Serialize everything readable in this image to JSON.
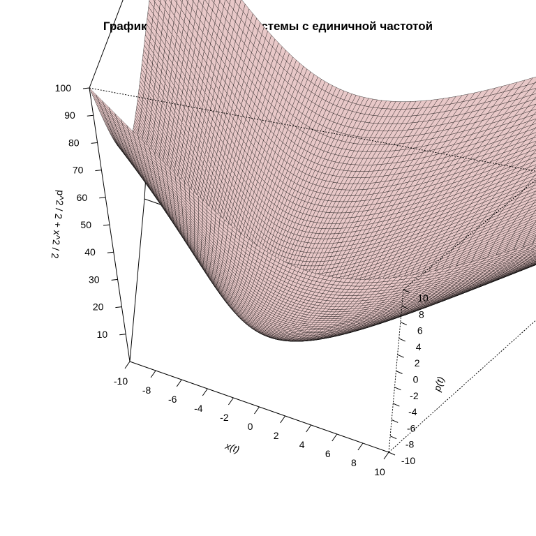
{
  "chart_data": {
    "type": "surface3d",
    "title": "График полной энергии системы с единичной частотой",
    "formula": "z = p^2/2 + x^2/2",
    "xlabel": "x(t)",
    "ylabel": "p(t)",
    "zlabel": "p^2 / 2 + x^2 / 2",
    "xlim": [
      -10,
      10
    ],
    "ylim": [
      -10,
      10
    ],
    "zlim": [
      0,
      100
    ],
    "x_ticks": [
      "-10",
      "-8",
      "-6",
      "-4",
      "-2",
      "0",
      "2",
      "4",
      "6",
      "8",
      "10"
    ],
    "y_ticks": [
      "-10",
      "-8",
      "-6",
      "-4",
      "-2",
      "0",
      "2",
      "4",
      "6",
      "8",
      "10"
    ],
    "z_ticks": [
      "10",
      "20",
      "30",
      "40",
      "50",
      "60",
      "70",
      "80",
      "90",
      "100"
    ],
    "grid_steps": 100,
    "surface_color": "#e8c8c8",
    "mesh_color": "#000000"
  }
}
